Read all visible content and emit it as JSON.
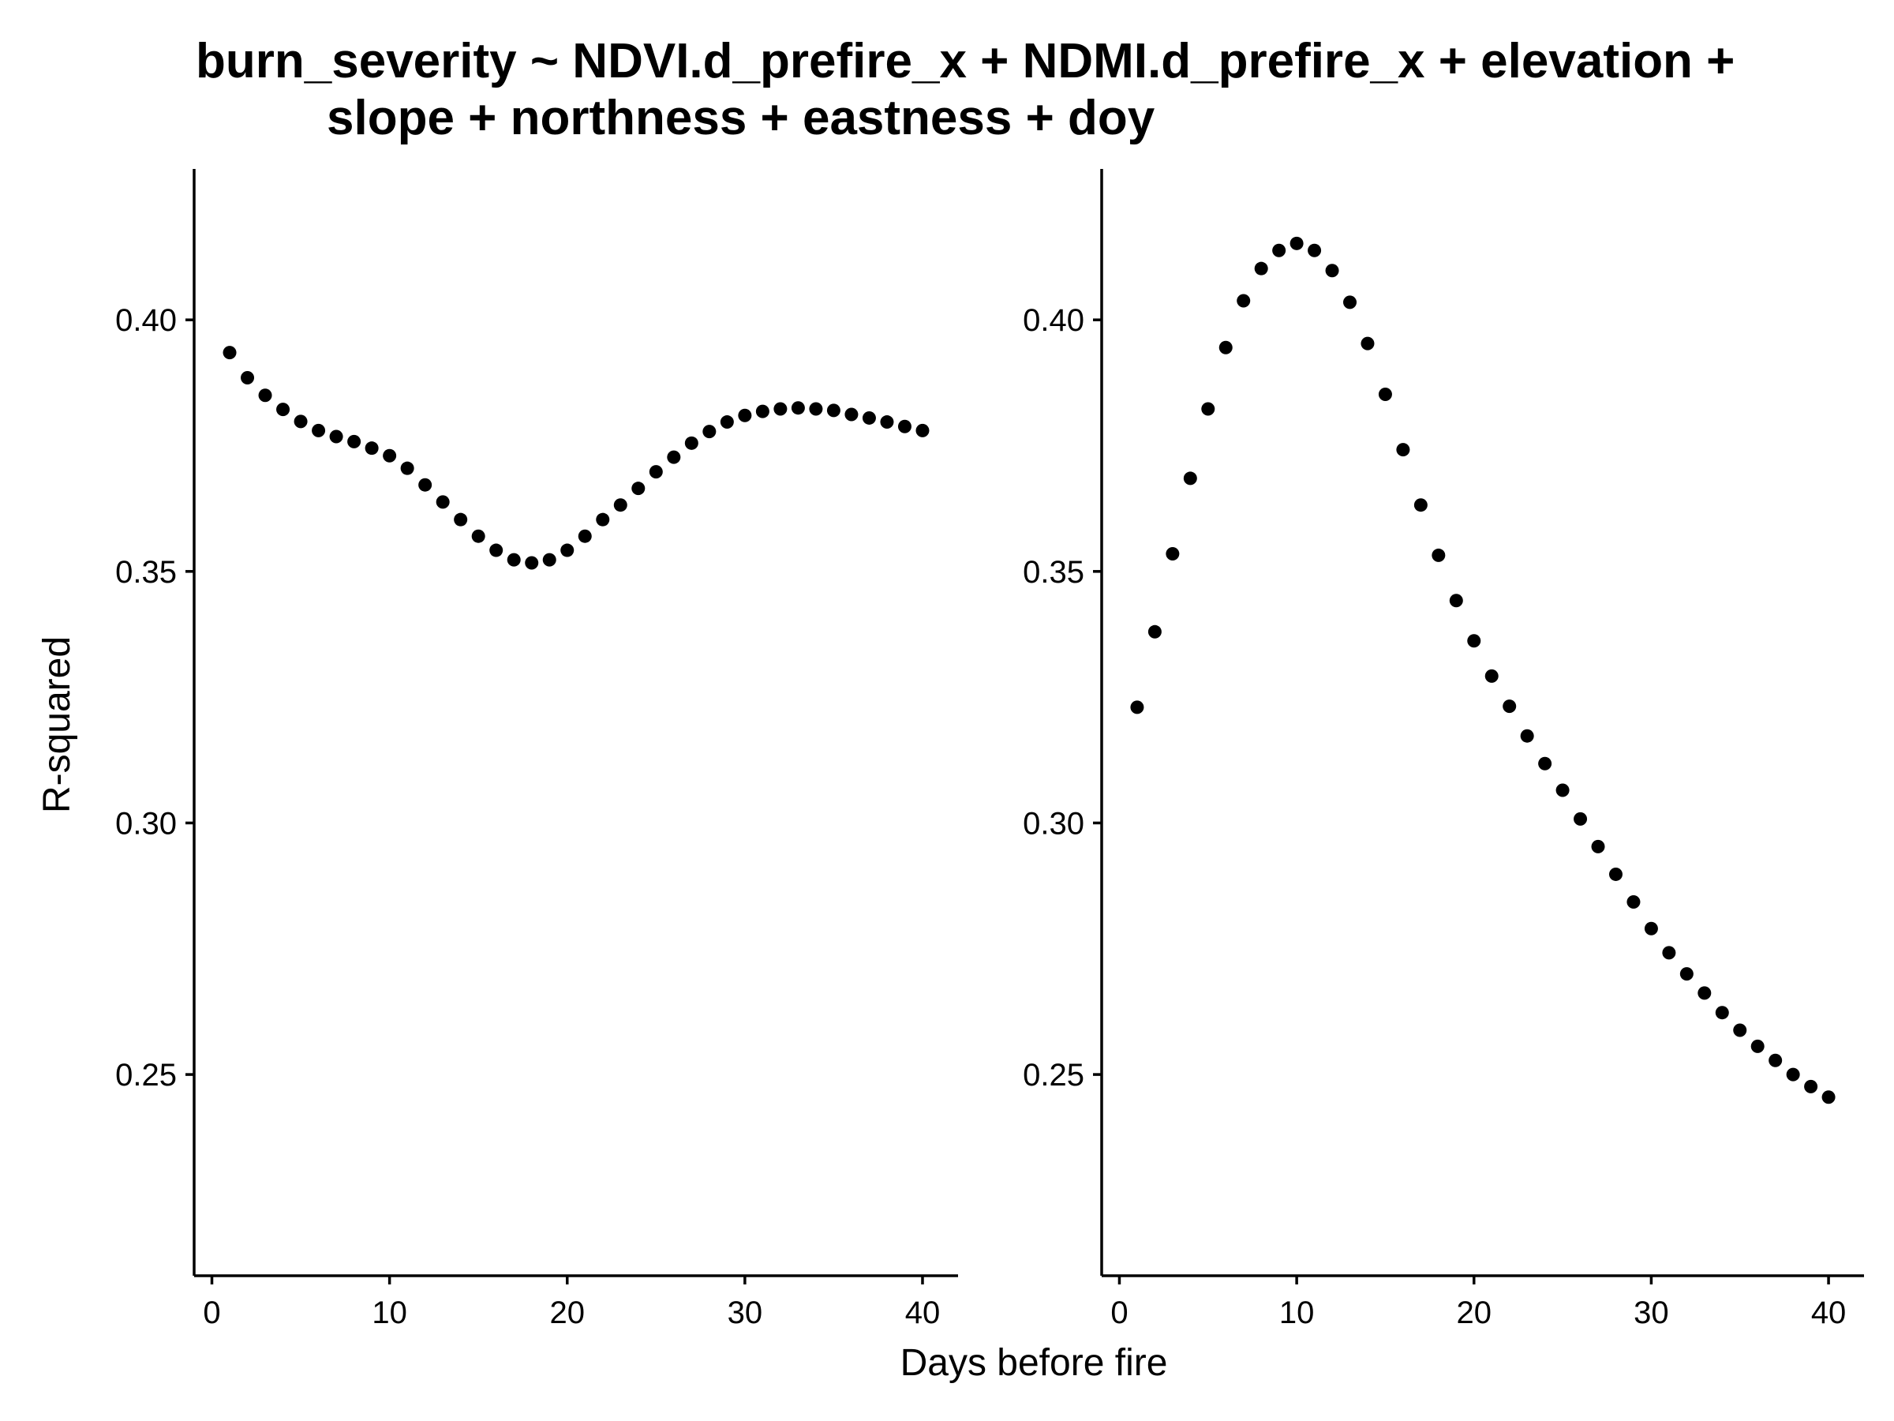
{
  "chart_data": {
    "type": "scatter",
    "title_lines": [
      "burn_severity ~ NDVI.d_prefire_x + NDMI.d_prefire_x + elevation +",
      "slope + northness + eastness + doy"
    ],
    "xlabel": "Days before fire",
    "ylabel": "R-squared",
    "shared_axes": true,
    "xlim": [
      -1,
      42
    ],
    "ylim": [
      0.21,
      0.43
    ],
    "xticks": [
      0,
      10,
      20,
      30,
      40
    ],
    "yticks": [
      0.25,
      0.3,
      0.35,
      0.4
    ],
    "xtick_labels": [
      "0",
      "10",
      "20",
      "30",
      "40"
    ],
    "ytick_labels": [
      "0.25",
      "0.30",
      "0.35",
      "0.40"
    ],
    "point_color": "#000000",
    "grid": false,
    "panels": [
      {
        "x": [
          1,
          2,
          3,
          4,
          5,
          6,
          7,
          8,
          9,
          10,
          11,
          12,
          13,
          14,
          15,
          16,
          17,
          18,
          19,
          20,
          21,
          22,
          23,
          24,
          25,
          26,
          27,
          28,
          29,
          30,
          31,
          32,
          33,
          34,
          35,
          36,
          37,
          38,
          39,
          40
        ],
        "y": [
          0.3935,
          0.3885,
          0.385,
          0.3822,
          0.3798,
          0.378,
          0.3768,
          0.3758,
          0.3745,
          0.373,
          0.3705,
          0.3672,
          0.3638,
          0.3603,
          0.357,
          0.3542,
          0.3523,
          0.3517,
          0.3523,
          0.3542,
          0.357,
          0.3603,
          0.3632,
          0.3665,
          0.3698,
          0.3727,
          0.3755,
          0.3778,
          0.3797,
          0.381,
          0.3818,
          0.3823,
          0.3825,
          0.3823,
          0.382,
          0.3812,
          0.3805,
          0.3797,
          0.3788,
          0.378
        ]
      },
      {
        "x": [
          1,
          2,
          3,
          4,
          5,
          6,
          7,
          8,
          9,
          10,
          11,
          12,
          13,
          14,
          15,
          16,
          17,
          18,
          19,
          20,
          21,
          22,
          23,
          24,
          25,
          26,
          27,
          28,
          29,
          30,
          31,
          32,
          33,
          34,
          35,
          36,
          37,
          38,
          39,
          40
        ],
        "y": [
          0.323,
          0.338,
          0.3535,
          0.3685,
          0.3823,
          0.3945,
          0.4038,
          0.4102,
          0.4138,
          0.4152,
          0.4138,
          0.4098,
          0.4035,
          0.3953,
          0.3852,
          0.3742,
          0.3632,
          0.3532,
          0.3442,
          0.3362,
          0.3292,
          0.3232,
          0.3173,
          0.3118,
          0.3065,
          0.3008,
          0.2953,
          0.2898,
          0.2843,
          0.279,
          0.2742,
          0.27,
          0.2662,
          0.2623,
          0.2588,
          0.2556,
          0.2528,
          0.25,
          0.2476,
          0.2455
        ]
      }
    ]
  }
}
